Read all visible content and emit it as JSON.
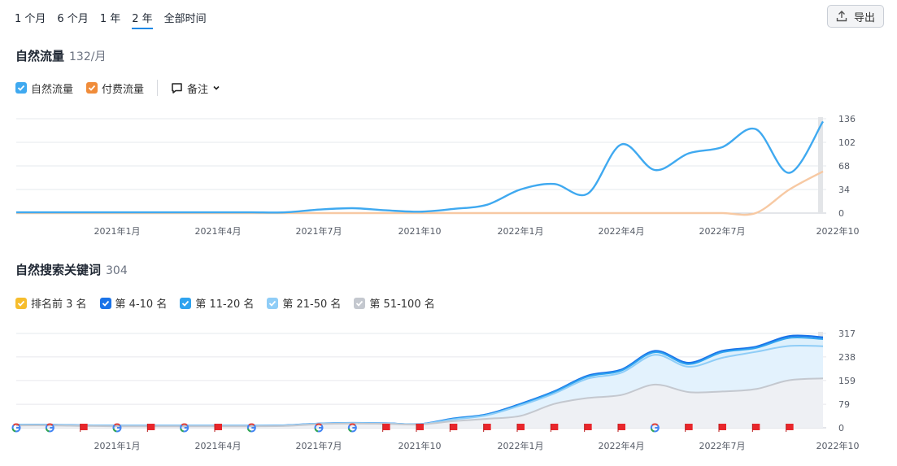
{
  "toolbar": {
    "ranges": [
      "1 个月",
      "6 个月",
      "1 年",
      "2 年",
      "全部时间"
    ],
    "active_range": "2 年",
    "export_label": "导出"
  },
  "traffic": {
    "title": "自然流量",
    "subtitle": "132/月",
    "legend": [
      {
        "label": "自然流量",
        "color": "#3fa9f0"
      },
      {
        "label": "付费流量",
        "color": "#f08c3a"
      }
    ],
    "notes_label": "备注"
  },
  "keywords": {
    "title": "自然搜索关键词",
    "subtitle": "304",
    "legend": [
      {
        "label": "排名前 3 名",
        "color": "#f6bd2d"
      },
      {
        "label": "第 4-10 名",
        "color": "#1a73e8"
      },
      {
        "label": "第 11-20 名",
        "color": "#2fa3ef"
      },
      {
        "label": "第 21-50 名",
        "color": "#8fcdf7"
      },
      {
        "label": "第 51-100 名",
        "color": "#c4c8cf"
      }
    ]
  },
  "chart_data": [
    {
      "type": "line",
      "title": "自然流量",
      "x_tick_labels": [
        "2021年1月",
        "2021年4月",
        "2021年7月",
        "2021年10",
        "2022年1月",
        "2022年4月",
        "2022年7月",
        "2022年10"
      ],
      "x_ticks": [
        "2021-01",
        "2021-04",
        "2021-07",
        "2021-10",
        "2022-01",
        "2022-04",
        "2022-07",
        "2022-10"
      ],
      "y_ticks": [
        0,
        34,
        68,
        102,
        136
      ],
      "ylim": [
        0,
        136
      ],
      "x": [
        "2020-10",
        "2020-11",
        "2020-12",
        "2021-01",
        "2021-02",
        "2021-03",
        "2021-04",
        "2021-05",
        "2021-06",
        "2021-07",
        "2021-08",
        "2021-09",
        "2021-10",
        "2021-11",
        "2021-12",
        "2022-01",
        "2022-02",
        "2022-03",
        "2022-04",
        "2022-05",
        "2022-06",
        "2022-07",
        "2022-08",
        "2022-09",
        "2022-10"
      ],
      "series": [
        {
          "name": "自然流量",
          "color": "#3fa9f0",
          "values": [
            1,
            1,
            1,
            1,
            1,
            1,
            1,
            1,
            1,
            5,
            7,
            4,
            2,
            6,
            12,
            34,
            42,
            28,
            99,
            62,
            86,
            95,
            121,
            58,
            132
          ]
        },
        {
          "name": "付费流量",
          "color": "#f7c9a3",
          "values": [
            0,
            0,
            0,
            0,
            0,
            0,
            0,
            0,
            0,
            0,
            0,
            0,
            0,
            0,
            0,
            0,
            0,
            0,
            0,
            0,
            0,
            0,
            0,
            34,
            60
          ]
        }
      ]
    },
    {
      "type": "area",
      "title": "自然搜索关键词",
      "x_tick_labels": [
        "2021年1月",
        "2021年4月",
        "2021年7月",
        "2021年10",
        "2022年1月",
        "2022年4月",
        "2022年7月",
        "2022年10"
      ],
      "x_ticks": [
        "2021-01",
        "2021-04",
        "2021-07",
        "2021-10",
        "2022-01",
        "2022-04",
        "2022-07",
        "2022-10"
      ],
      "y_ticks": [
        0,
        79,
        159,
        238,
        317
      ],
      "ylim": [
        0,
        317
      ],
      "x": [
        "2020-10",
        "2020-11",
        "2020-12",
        "2021-01",
        "2021-02",
        "2021-03",
        "2021-04",
        "2021-05",
        "2021-06",
        "2021-07",
        "2021-08",
        "2021-09",
        "2021-10",
        "2021-11",
        "2021-12",
        "2022-01",
        "2022-02",
        "2022-03",
        "2022-04",
        "2022-05",
        "2022-06",
        "2022-07",
        "2022-08",
        "2022-09",
        "2022-10"
      ],
      "series": [
        {
          "name": "第 51-100 名",
          "color": "#c4c8cf",
          "values": [
            8,
            8,
            6,
            5,
            5,
            5,
            5,
            5,
            6,
            12,
            14,
            13,
            11,
            22,
            30,
            40,
            80,
            100,
            110,
            145,
            120,
            122,
            130,
            160,
            166
          ]
        },
        {
          "name": "第 21-50 名",
          "color": "#8fcdf7",
          "values": [
            10,
            10,
            8,
            7,
            7,
            7,
            7,
            7,
            8,
            14,
            16,
            15,
            12,
            28,
            42,
            75,
            115,
            165,
            185,
            245,
            205,
            235,
            255,
            275,
            274
          ]
        },
        {
          "name": "第 11-20 名",
          "color": "#2fa3ef",
          "values": [
            10,
            10,
            8,
            7,
            7,
            7,
            7,
            7,
            8,
            14,
            16,
            15,
            12,
            30,
            44,
            78,
            120,
            172,
            192,
            254,
            214,
            254,
            268,
            302,
            298
          ]
        },
        {
          "name": "第 4-10 名",
          "color": "#1a73e8",
          "values": [
            10,
            10,
            8,
            7,
            7,
            7,
            7,
            7,
            8,
            14,
            16,
            15,
            12,
            31,
            45,
            80,
            122,
            175,
            195,
            258,
            218,
            258,
            272,
            308,
            304
          ]
        }
      ],
      "event_markers": [
        {
          "x": "2020-10",
          "type": "google"
        },
        {
          "x": "2020-11",
          "type": "google"
        },
        {
          "x": "2020-12",
          "type": "flag"
        },
        {
          "x": "2021-01",
          "type": "google"
        },
        {
          "x": "2021-02",
          "type": "flag"
        },
        {
          "x": "2021-03",
          "type": "google"
        },
        {
          "x": "2021-04",
          "type": "flag"
        },
        {
          "x": "2021-05",
          "type": "google"
        },
        {
          "x": "2021-07",
          "type": "google"
        },
        {
          "x": "2021-08",
          "type": "google"
        },
        {
          "x": "2021-09",
          "type": "flag"
        },
        {
          "x": "2021-10",
          "type": "flag"
        },
        {
          "x": "2021-11",
          "type": "flag"
        },
        {
          "x": "2021-12",
          "type": "flag"
        },
        {
          "x": "2022-01",
          "type": "flag"
        },
        {
          "x": "2022-02",
          "type": "flag"
        },
        {
          "x": "2022-03",
          "type": "flag"
        },
        {
          "x": "2022-04",
          "type": "flag"
        },
        {
          "x": "2022-05",
          "type": "google"
        },
        {
          "x": "2022-06",
          "type": "flag"
        },
        {
          "x": "2022-07",
          "type": "flag"
        },
        {
          "x": "2022-08",
          "type": "flag"
        },
        {
          "x": "2022-09",
          "type": "flag"
        }
      ]
    }
  ]
}
